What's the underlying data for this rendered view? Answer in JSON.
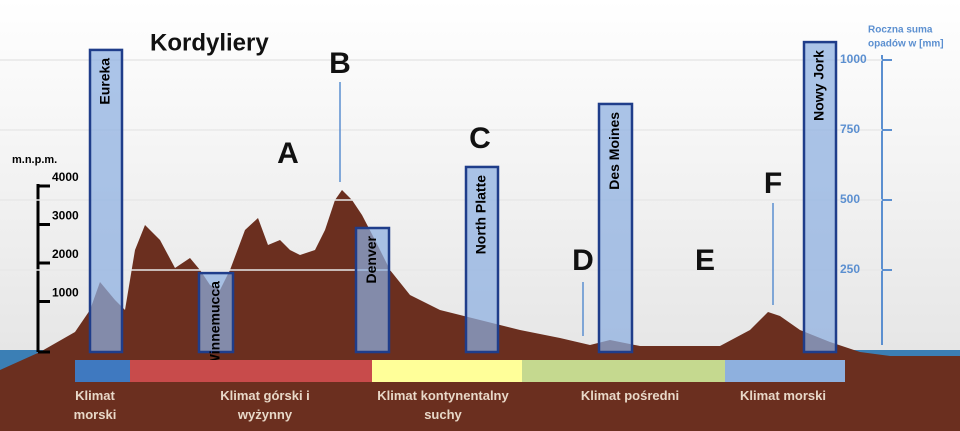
{
  "title": "Kordyliery",
  "elevation_axis": {
    "label": "m.n.p.m.",
    "ticks": [
      1000,
      2000,
      3000,
      4000
    ]
  },
  "precipitation_axis": {
    "label_lines": [
      "Roczna suma",
      "opadów w [mm]"
    ],
    "ticks": [
      250,
      500,
      750,
      1000
    ]
  },
  "stations": [
    {
      "name": "Eureka",
      "precipitation": 1036
    },
    {
      "name": "Winnemucca",
      "precipitation": 239
    },
    {
      "name": "Denver",
      "precipitation": 400
    },
    {
      "name": "North Platte",
      "precipitation": 618
    },
    {
      "name": "Des Moines",
      "precipitation": 843
    },
    {
      "name": "Nowy Jork",
      "precipitation": 1064
    }
  ],
  "letters": [
    "A",
    "B",
    "C",
    "D",
    "E",
    "F"
  ],
  "climate_zones": [
    "Klimat morski",
    "Klimat górski i wyżynny",
    "Klimat kontynentalny suchy",
    "Klimat pośredni",
    "Klimat morski"
  ]
}
